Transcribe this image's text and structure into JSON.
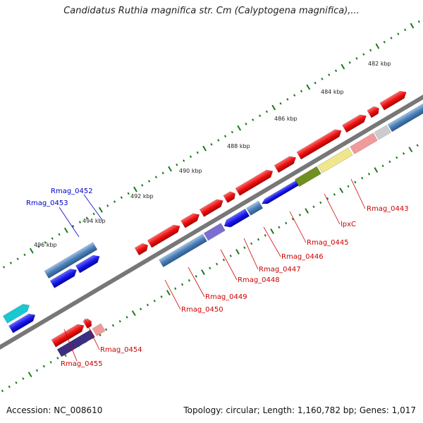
{
  "title": "Candidatus Ruthia magnifica str. Cm (Calyptogena magnifica),...",
  "footer": {
    "accession": "Accession: NC_008610",
    "summary": "Topology: circular; Length: 1,160,782 bp; Genes: 1,017"
  },
  "scale_labels": [
    "482 kbp",
    "484 kbp",
    "486 kbp",
    "488 kbp",
    "490 kbp",
    "492 kbp",
    "494 kbp",
    "496 kbp"
  ],
  "gene_labels": [
    {
      "text": "Rmag_0452",
      "color": "#0000cc"
    },
    {
      "text": "Rmag_0453",
      "color": "#0000cc"
    },
    {
      "text": "Rmag_0443",
      "color": "#cc0000"
    },
    {
      "text": "lpxC",
      "color": "#cc0000"
    },
    {
      "text": "Rmag_0445",
      "color": "#cc0000"
    },
    {
      "text": "Rmag_0446",
      "color": "#cc0000"
    },
    {
      "text": "Rmag_0447",
      "color": "#cc0000"
    },
    {
      "text": "Rmag_0448",
      "color": "#cc0000"
    },
    {
      "text": "Rmag_0449",
      "color": "#cc0000"
    },
    {
      "text": "Rmag_0450",
      "color": "#cc0000"
    },
    {
      "text": "Rmag_0454",
      "color": "#cc0000"
    },
    {
      "text": "Rmag_0455",
      "color": "#cc0000"
    }
  ],
  "colors": {
    "backbone": "#777777",
    "forward_gene": "#ee1111",
    "reverse_gene": "#1a1aee",
    "steelblue_gene": "#4a7fb8",
    "olive_gene": "#6f8f1f",
    "yellow_gene": "#f0e68c",
    "purple_gene": "#7a6fd0",
    "darkpurple_gene": "#3c2f80",
    "cyan_gene": "#19c8d0",
    "tick": "#1a7a1a"
  }
}
